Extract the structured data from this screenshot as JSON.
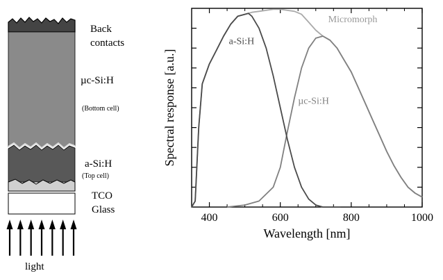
{
  "figure": {
    "layers": {
      "back_contacts": [
        "Back",
        "contacts"
      ],
      "bottom_cell": {
        "material": "µc-Si:H",
        "role": "(Bottom cell)"
      },
      "top_cell": {
        "material": "a-Si:H",
        "role": "(Top cell)"
      },
      "tco": "TCO",
      "glass": "Glass"
    },
    "light_label": "light",
    "arrow_count": 7
  },
  "chart_data": {
    "type": "line",
    "xlabel": "Wavelength  [nm]",
    "ylabel": "Spectral  response  [a.u.]",
    "xlim": [
      350,
      1000
    ],
    "ylim": [
      0,
      1
    ],
    "xticks": [
      400,
      600,
      800,
      1000
    ],
    "series": [
      {
        "name": "a-Si:H",
        "color": "#4a4a4a",
        "points": [
          [
            350,
            0
          ],
          [
            360,
            0.03
          ],
          [
            370,
            0.4
          ],
          [
            380,
            0.62
          ],
          [
            400,
            0.72
          ],
          [
            420,
            0.79
          ],
          [
            440,
            0.86
          ],
          [
            460,
            0.92
          ],
          [
            480,
            0.96
          ],
          [
            500,
            0.97
          ],
          [
            510,
            0.975
          ],
          [
            520,
            0.96
          ],
          [
            540,
            0.9
          ],
          [
            560,
            0.8
          ],
          [
            580,
            0.66
          ],
          [
            600,
            0.5
          ],
          [
            620,
            0.34
          ],
          [
            640,
            0.2
          ],
          [
            660,
            0.1
          ],
          [
            680,
            0.04
          ],
          [
            700,
            0.01
          ],
          [
            720,
            0.0
          ],
          [
            760,
            0.0
          ],
          [
            770,
            0.0
          ]
        ]
      },
      {
        "name": "µc-Si:H",
        "color": "#808080",
        "points": [
          [
            450,
            0
          ],
          [
            500,
            0.01
          ],
          [
            540,
            0.03
          ],
          [
            580,
            0.1
          ],
          [
            600,
            0.2
          ],
          [
            620,
            0.38
          ],
          [
            640,
            0.55
          ],
          [
            660,
            0.7
          ],
          [
            680,
            0.8
          ],
          [
            700,
            0.85
          ],
          [
            720,
            0.86
          ],
          [
            740,
            0.84
          ],
          [
            760,
            0.8
          ],
          [
            780,
            0.74
          ],
          [
            800,
            0.68
          ],
          [
            820,
            0.6
          ],
          [
            840,
            0.52
          ],
          [
            860,
            0.44
          ],
          [
            880,
            0.36
          ],
          [
            900,
            0.28
          ],
          [
            920,
            0.21
          ],
          [
            940,
            0.15
          ],
          [
            960,
            0.1
          ],
          [
            980,
            0.07
          ],
          [
            1000,
            0.05
          ]
        ]
      },
      {
        "name": "Micromorph",
        "color": "#aaaaaa",
        "points": [
          [
            350,
            0
          ],
          [
            360,
            0.03
          ],
          [
            370,
            0.4
          ],
          [
            380,
            0.62
          ],
          [
            400,
            0.72
          ],
          [
            420,
            0.79
          ],
          [
            440,
            0.86
          ],
          [
            460,
            0.92
          ],
          [
            480,
            0.96
          ],
          [
            500,
            0.97
          ],
          [
            520,
            0.98
          ],
          [
            540,
            0.985
          ],
          [
            560,
            0.99
          ],
          [
            580,
            0.995
          ],
          [
            600,
            0.995
          ],
          [
            620,
            0.99
          ],
          [
            640,
            0.985
          ],
          [
            660,
            0.97
          ],
          [
            680,
            0.93
          ],
          [
            700,
            0.89
          ],
          [
            720,
            0.86
          ],
          [
            740,
            0.84
          ],
          [
            760,
            0.8
          ],
          [
            780,
            0.74
          ],
          [
            800,
            0.68
          ],
          [
            820,
            0.6
          ],
          [
            840,
            0.52
          ],
          [
            860,
            0.44
          ],
          [
            880,
            0.36
          ],
          [
            900,
            0.28
          ],
          [
            920,
            0.21
          ],
          [
            940,
            0.15
          ],
          [
            960,
            0.1
          ],
          [
            980,
            0.07
          ],
          [
            1000,
            0.05
          ]
        ]
      }
    ]
  }
}
